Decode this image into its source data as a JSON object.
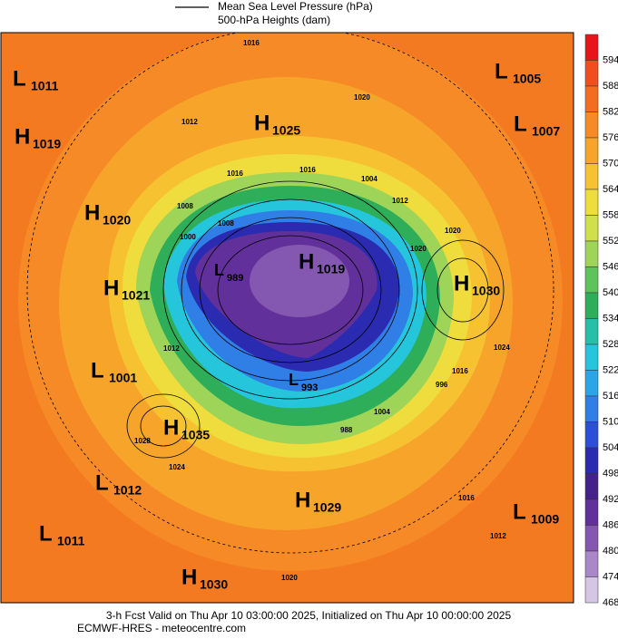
{
  "header": {
    "legend_pressure": "Mean Sea Level Pressure (hPa)",
    "legend_heights": "500-hPa Heights (dam)"
  },
  "colorbar": [
    {
      "value": 594,
      "color": "#e8141c"
    },
    {
      "value": 588,
      "color": "#f04e1e"
    },
    {
      "value": 582,
      "color": "#f36c22"
    },
    {
      "value": 576,
      "color": "#f58a26"
    },
    {
      "value": 570,
      "color": "#f7a52a"
    },
    {
      "value": 564,
      "color": "#f7c232"
    },
    {
      "value": 558,
      "color": "#eedd3c"
    },
    {
      "value": 552,
      "color": "#cfe04a"
    },
    {
      "value": 546,
      "color": "#9ed457"
    },
    {
      "value": 540,
      "color": "#5fc35c"
    },
    {
      "value": 534,
      "color": "#2fae5a"
    },
    {
      "value": 528,
      "color": "#26bfa8"
    },
    {
      "value": 522,
      "color": "#25c6dc"
    },
    {
      "value": 516,
      "color": "#2aa6e8"
    },
    {
      "value": 510,
      "color": "#2f7fe6"
    },
    {
      "value": 504,
      "color": "#2b4fd8"
    },
    {
      "value": 498,
      "color": "#2a2bb0"
    },
    {
      "value": 492,
      "color": "#45218a"
    },
    {
      "value": 486,
      "color": "#62309a"
    },
    {
      "value": 480,
      "color": "#8458b0"
    },
    {
      "value": 474,
      "color": "#a987c8"
    },
    {
      "value": 468,
      "color": "#d6c6e6"
    }
  ],
  "centers": [
    {
      "kind": "L",
      "value": "1011"
    },
    {
      "kind": "H",
      "value": "1019"
    },
    {
      "kind": "H",
      "value": "1025"
    },
    {
      "kind": "L",
      "value": "1005"
    },
    {
      "kind": "L",
      "value": "1007"
    },
    {
      "kind": "H",
      "value": "1020"
    },
    {
      "kind": "H",
      "value": "1021"
    },
    {
      "kind": "L",
      "value": "989"
    },
    {
      "kind": "H",
      "value": "1019"
    },
    {
      "kind": "H",
      "value": "1030"
    },
    {
      "kind": "L",
      "value": "1001"
    },
    {
      "kind": "L",
      "value": "993"
    },
    {
      "kind": "H",
      "value": "1035"
    },
    {
      "kind": "L",
      "value": "1012"
    },
    {
      "kind": "H",
      "value": "1029"
    },
    {
      "kind": "L",
      "value": "1009"
    },
    {
      "kind": "L",
      "value": "1011"
    },
    {
      "kind": "H",
      "value": "1030"
    }
  ],
  "contour_labels": [
    "1016",
    "1020",
    "1012",
    "1016",
    "1004",
    "1012",
    "1008",
    "1008",
    "1000",
    "1016",
    "1020",
    "1012",
    "1024",
    "1020",
    "996",
    "1004",
    "988",
    "1016",
    "1028",
    "1024",
    "1016",
    "1012",
    "1020"
  ],
  "footer": {
    "valid": "3-h Fcst Valid on Thu Apr 10 03:00:00 2025, Initialized on Thu Apr 10 00:00:00 2025",
    "source": "ECMWF-HRES  - meteocentre.com"
  }
}
